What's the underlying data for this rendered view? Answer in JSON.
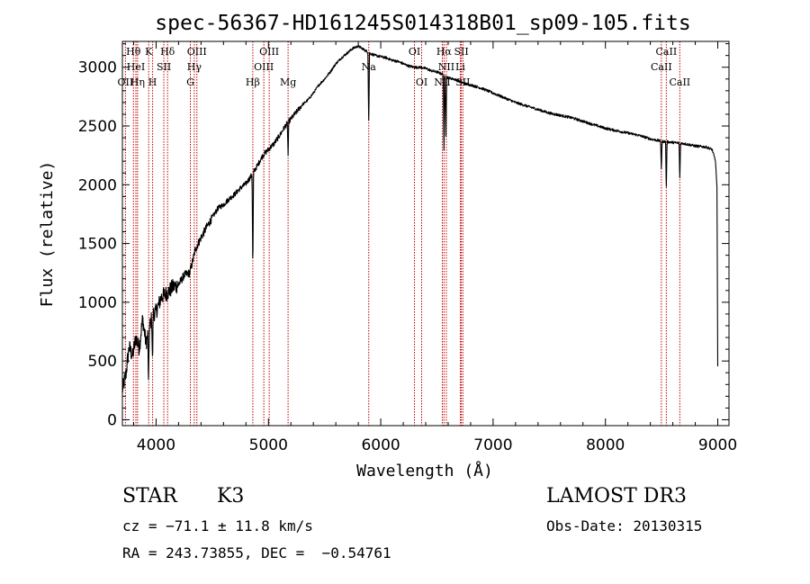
{
  "chart_data": {
    "type": "line",
    "title": "spec-56367-HD161245S014318B01_sp09-105.fits",
    "xlabel": "Wavelength (Å)",
    "ylabel": "Flux (relative)",
    "xlim": [
      3700,
      9100
    ],
    "ylim": [
      -50,
      3220
    ],
    "xticks": [
      4000,
      5000,
      6000,
      7000,
      8000,
      9000
    ],
    "yticks": [
      0,
      500,
      1000,
      1500,
      2000,
      2500,
      3000
    ],
    "grid": false,
    "series": [
      {
        "name": "flux",
        "x": [
          3700,
          3730,
          3760,
          3790,
          3820,
          3850,
          3880,
          3910,
          3940,
          3970,
          4000,
          4050,
          4100,
          4150,
          4200,
          4250,
          4300,
          4350,
          4400,
          4450,
          4500,
          4550,
          4600,
          4650,
          4700,
          4750,
          4800,
          4850,
          4900,
          4950,
          5000,
          5050,
          5100,
          5150,
          5200,
          5250,
          5300,
          5350,
          5400,
          5450,
          5500,
          5550,
          5600,
          5650,
          5700,
          5750,
          5800,
          5850,
          5900,
          5950,
          6000,
          6050,
          6100,
          6150,
          6200,
          6250,
          6300,
          6350,
          6400,
          6450,
          6500,
          6550,
          6600,
          6650,
          6700,
          6750,
          6800,
          6900,
          7000,
          7100,
          7200,
          7300,
          7400,
          7500,
          7600,
          7700,
          7800,
          7900,
          8000,
          8100,
          8200,
          8300,
          8400,
          8500,
          8600,
          8700,
          8800,
          8900,
          8950,
          8980,
          9000
        ],
        "y": [
          250,
          380,
          620,
          540,
          700,
          610,
          860,
          650,
          780,
          900,
          920,
          1050,
          1080,
          1130,
          1150,
          1230,
          1250,
          1450,
          1550,
          1640,
          1720,
          1800,
          1830,
          1880,
          1920,
          1970,
          2010,
          2080,
          2160,
          2250,
          2300,
          2350,
          2420,
          2500,
          2560,
          2620,
          2680,
          2720,
          2780,
          2850,
          2900,
          2960,
          3030,
          3080,
          3120,
          3160,
          3180,
          3150,
          3120,
          3100,
          3090,
          3080,
          3060,
          3050,
          3030,
          3010,
          3000,
          3000,
          2990,
          2970,
          2960,
          2940,
          2910,
          2900,
          2880,
          2860,
          2850,
          2820,
          2780,
          2740,
          2700,
          2670,
          2640,
          2610,
          2590,
          2570,
          2540,
          2510,
          2480,
          2460,
          2440,
          2420,
          2390,
          2370,
          2360,
          2350,
          2330,
          2320,
          2300,
          2200,
          1850
        ]
      }
    ],
    "absorption_features": [
      {
        "x": 3933,
        "depth": 480
      },
      {
        "x": 3968,
        "depth": 420
      },
      {
        "x": 4861,
        "depth": 850
      },
      {
        "x": 5175,
        "depth": 280
      },
      {
        "x": 5893,
        "depth": 620
      },
      {
        "x": 6563,
        "depth": 700
      },
      {
        "x": 6580,
        "depth": 500
      },
      {
        "x": 8498,
        "depth": 250
      },
      {
        "x": 8542,
        "depth": 420
      },
      {
        "x": 8662,
        "depth": 320
      },
      {
        "x": 9000,
        "depth": 1400
      }
    ],
    "spectral_lines": [
      {
        "label": "Hθ",
        "x": 3798,
        "row": 0
      },
      {
        "label": "OII",
        "x": 3727,
        "row": 2
      },
      {
        "label": "HeI",
        "x": 3820,
        "row": 1
      },
      {
        "label": "Hη",
        "x": 3835,
        "row": 2
      },
      {
        "label": "K",
        "x": 3934,
        "row": 0
      },
      {
        "label": "H",
        "x": 3969,
        "row": 2
      },
      {
        "label": "SII",
        "x": 4069,
        "row": 1
      },
      {
        "label": "Hδ",
        "x": 4102,
        "row": 0
      },
      {
        "label": "OIII",
        "x": 4363,
        "row": 0
      },
      {
        "label": "Hγ",
        "x": 4340,
        "row": 1
      },
      {
        "label": "G",
        "x": 4305,
        "row": 2
      },
      {
        "label": "Hβ",
        "x": 4861,
        "row": 2
      },
      {
        "label": "OIII",
        "x": 5007,
        "row": 0
      },
      {
        "label": "OIII",
        "x": 4959,
        "row": 1
      },
      {
        "label": "Mg",
        "x": 5175,
        "row": 2
      },
      {
        "label": "Na",
        "x": 5893,
        "row": 1
      },
      {
        "label": "OI",
        "x": 6300,
        "row": 0
      },
      {
        "label": "OI",
        "x": 6364,
        "row": 2
      },
      {
        "label": "Hα",
        "x": 6563,
        "row": 0
      },
      {
        "label": "NII",
        "x": 6584,
        "row": 1
      },
      {
        "label": "NII",
        "x": 6548,
        "row": 2
      },
      {
        "label": "SII",
        "x": 6717,
        "row": 0
      },
      {
        "label": "Li",
        "x": 6708,
        "row": 1
      },
      {
        "label": "SII",
        "x": 6731,
        "row": 2
      },
      {
        "label": "CaII",
        "x": 8542,
        "row": 0
      },
      {
        "label": "CaII",
        "x": 8498,
        "row": 1
      },
      {
        "label": "CaII",
        "x": 8662,
        "row": 2
      }
    ]
  },
  "info": {
    "object_type": "STAR",
    "subclass": "K3",
    "survey": "LAMOST DR3",
    "redshift": "cz = −71.1 ± 11.8 km/s",
    "obs_date": "Obs-Date: 20130315",
    "coords": "RA = 243.73855, DEC =  −0.54761"
  },
  "colors": {
    "line": "#000000",
    "marker": "#c00000"
  }
}
